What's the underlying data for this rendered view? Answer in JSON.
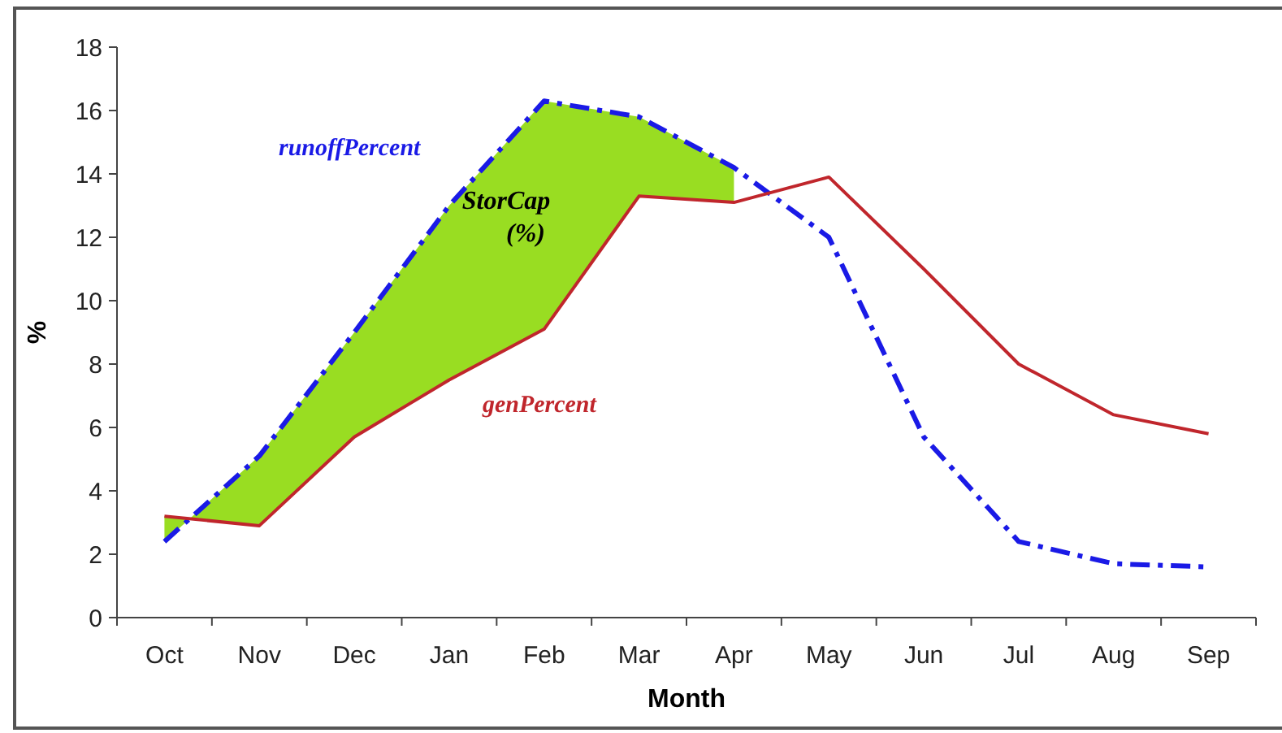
{
  "chart_data": {
    "type": "line",
    "xlabel": "Month",
    "ylabel": "%",
    "categories": [
      "Oct",
      "Nov",
      "Dec",
      "Jan",
      "Feb",
      "Mar",
      "Apr",
      "May",
      "Jun",
      "Jul",
      "Aug",
      "Sep"
    ],
    "series": [
      {
        "type": "area",
        "color": "#99dd22",
        "values": [
          2.4,
          5.1,
          9.0,
          13.0,
          16.3,
          15.8,
          14.2,
          null,
          null,
          null,
          null,
          null
        ]
      },
      {
        "name": "runoffPercent",
        "color": "#1a1ae6",
        "line_style": "dashed",
        "values": [
          2.4,
          5.1,
          9.0,
          13.0,
          16.3,
          15.8,
          14.2,
          12.0,
          5.7,
          2.4,
          1.7,
          1.6
        ]
      },
      {
        "name": "genPercent",
        "color": "#c0262c",
        "line_style": "solid",
        "values": [
          3.2,
          2.9,
          5.7,
          7.5,
          9.1,
          13.3,
          13.1,
          13.9,
          11.0,
          8.0,
          6.4,
          5.8
        ]
      }
    ],
    "annotations": [
      "StorCap (%)"
    ],
    "ylim": [
      0,
      18
    ],
    "yticks": [
      0,
      2,
      4,
      6,
      8,
      10,
      12,
      14,
      16,
      18
    ],
    "grid": false,
    "legend": false,
    "marker": "none"
  }
}
